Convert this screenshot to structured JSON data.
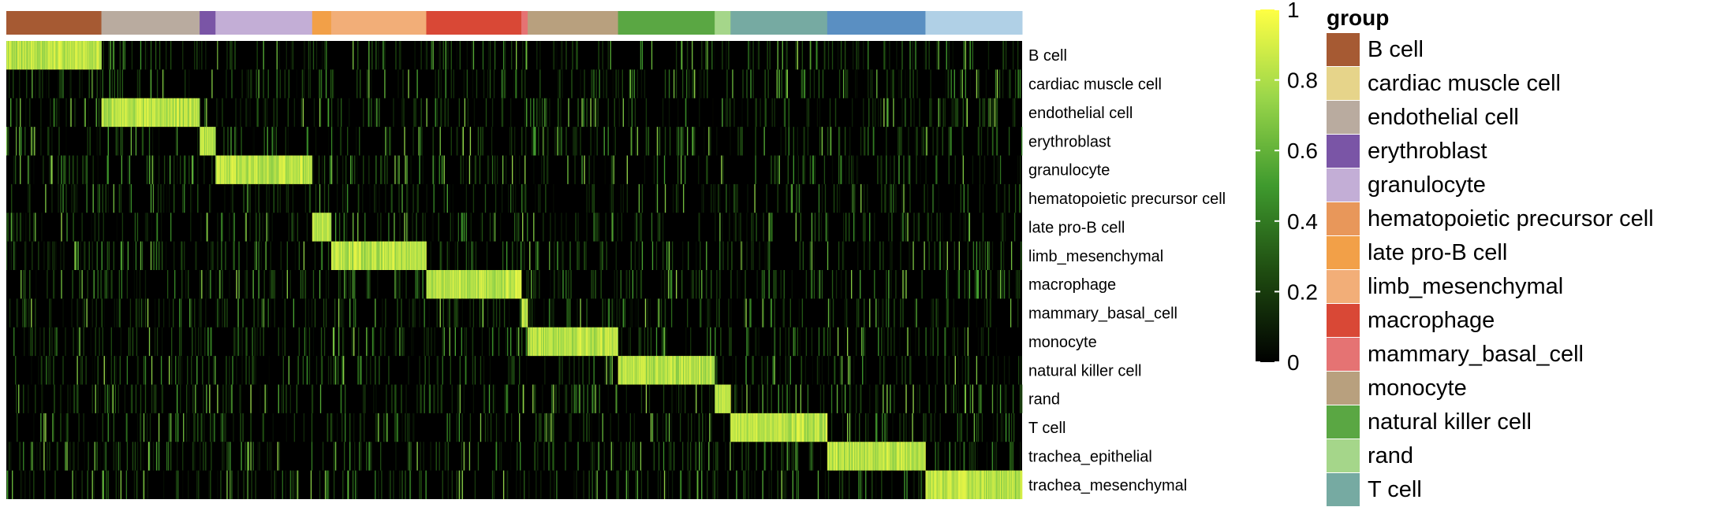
{
  "chart_data": {
    "type": "heatmap",
    "rows": [
      "B cell",
      "cardiac muscle cell",
      "endothelial cell",
      "erythroblast",
      "granulocyte",
      "hematopoietic precursor cell",
      "late pro-B cell",
      "limb_mesenchymal",
      "macrophage",
      "mammary_basal_cell",
      "monocyte",
      "natural killer cell",
      "rand",
      "T cell",
      "trachea_epithelial",
      "trachea_mesenchymal"
    ],
    "column_groups": [
      {
        "group": "B cell",
        "columns": 120,
        "highlight_row": "B cell"
      },
      {
        "group": "endothelial cell",
        "columns": 124,
        "highlight_row": "endothelial cell"
      },
      {
        "group": "erythroblast",
        "columns": 20,
        "highlight_row": "erythroblast"
      },
      {
        "group": "granulocyte",
        "columns": 122,
        "highlight_row": "granulocyte"
      },
      {
        "group": "late pro-B cell",
        "columns": 24,
        "highlight_row": "late pro-B cell"
      },
      {
        "group": "limb_mesenchymal",
        "columns": 120,
        "highlight_row": "limb_mesenchymal"
      },
      {
        "group": "macrophage",
        "columns": 120,
        "highlight_row": "macrophage"
      },
      {
        "group": "mammary_basal_cell",
        "columns": 8,
        "highlight_row": "mammary_basal_cell"
      },
      {
        "group": "monocyte",
        "columns": 114,
        "highlight_row": "monocyte"
      },
      {
        "group": "natural killer cell",
        "columns": 122,
        "highlight_row": "natural killer cell"
      },
      {
        "group": "rand",
        "columns": 20,
        "highlight_row": "rand"
      },
      {
        "group": "T cell",
        "columns": 122,
        "highlight_row": "T cell"
      },
      {
        "group": "trachea_epithelial",
        "columns": 124,
        "highlight_row": "trachea_epithelial"
      },
      {
        "group": "trachea_mesenchymal",
        "columns": 122,
        "highlight_row": "trachea_mesenchymal"
      }
    ],
    "value_range": [
      0,
      1
    ],
    "in_group_value": 0.95,
    "background_value": 0.05,
    "colorbar": {
      "colors": [
        "#000000",
        "#1e4a10",
        "#3f9a2e",
        "#9ad64a",
        "#ffff44"
      ],
      "ticks": [
        {
          "value": 0,
          "label": "0"
        },
        {
          "value": 0.2,
          "label": "0.2"
        },
        {
          "value": 0.4,
          "label": "0.4"
        },
        {
          "value": 0.6,
          "label": "0.6"
        },
        {
          "value": 0.8,
          "label": "0.8"
        },
        {
          "value": 1,
          "label": "1"
        }
      ]
    },
    "legend": {
      "title": "group",
      "placement": "right",
      "entries": [
        {
          "label": "B cell",
          "color": "#a65a33"
        },
        {
          "label": "cardiac muscle cell",
          "color": "#e6d48a"
        },
        {
          "label": "endothelial cell",
          "color": "#b9ab9f"
        },
        {
          "label": "erythroblast",
          "color": "#7a55a6"
        },
        {
          "label": "granulocyte",
          "color": "#c3aed6"
        },
        {
          "label": "hematopoietic precursor cell",
          "color": "#e8975a"
        },
        {
          "label": "late pro-B cell",
          "color": "#f2a048"
        },
        {
          "label": "limb_mesenchymal",
          "color": "#f2ae78"
        },
        {
          "label": "macrophage",
          "color": "#d94836"
        },
        {
          "label": "mammary_basal_cell",
          "color": "#e57373"
        },
        {
          "label": "monocyte",
          "color": "#b8a07e"
        },
        {
          "label": "natural killer cell",
          "color": "#5aa743"
        },
        {
          "label": "rand",
          "color": "#a5d68a"
        },
        {
          "label": "T cell",
          "color": "#76aaa2"
        }
      ]
    },
    "annotation_bar_colors": {
      "trachea_epithelial": "#5a8fc2",
      "trachea_mesenchymal": "#b0d0e6"
    }
  }
}
